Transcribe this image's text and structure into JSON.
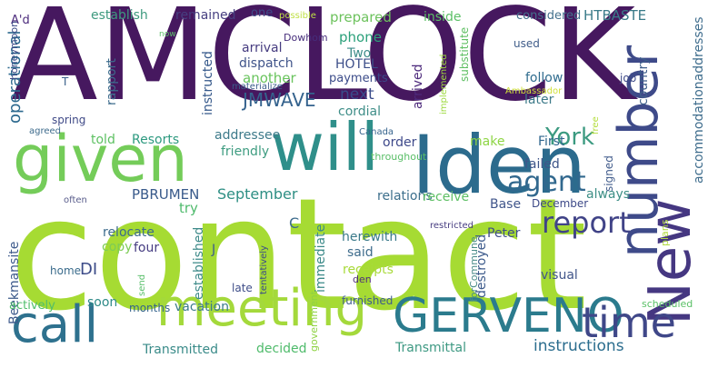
{
  "words": [
    {
      "text": "AMCLOCK",
      "color": "#46185f"
    },
    {
      "text": "contact",
      "color": "#a6db33"
    },
    {
      "text": "given",
      "color": "#74cc59"
    },
    {
      "text": "Iden",
      "color": "#2c6b8d"
    },
    {
      "text": "will",
      "color": "#2f8f8a"
    },
    {
      "text": "number",
      "color": "#3e4a89"
    },
    {
      "text": "New",
      "color": "#453781"
    },
    {
      "text": "meeting",
      "color": "#a4d93b"
    },
    {
      "text": "GERVENO",
      "color": "#2b7b8d"
    },
    {
      "text": "time",
      "color": "#3f4788"
    },
    {
      "text": "call",
      "color": "#2e718e"
    },
    {
      "text": "report",
      "color": "#404387"
    },
    {
      "text": "agent",
      "color": "#31688e"
    },
    {
      "text": "York",
      "color": "#3b9a80"
    },
    {
      "text": "instructions",
      "color": "#2b6d8e"
    },
    {
      "text": "JMWAVE",
      "color": "#34628d"
    },
    {
      "text": "next",
      "color": "#3a4b8a"
    },
    {
      "text": "HOTEL",
      "color": "#3c4e89"
    },
    {
      "text": "phone",
      "color": "#2ba07a"
    },
    {
      "text": "PBRUMEN",
      "color": "#395a8b"
    },
    {
      "text": "September",
      "color": "#2e8f84"
    },
    {
      "text": "operational",
      "color": "#2c698e"
    },
    {
      "text": "accommodationaddresses",
      "color": "#3f6d8d"
    },
    {
      "text": "establish",
      "color": "#3e9a7f"
    },
    {
      "text": "remained",
      "color": "#463f80"
    },
    {
      "text": "one",
      "color": "#3e4c88"
    },
    {
      "text": "prepared",
      "color": "#6dc25d"
    },
    {
      "text": "inside",
      "color": "#5bbf66"
    },
    {
      "text": "considered",
      "color": "#43718d"
    },
    {
      "text": "HTBASTE",
      "color": "#3a7b89"
    },
    {
      "text": "possible",
      "color": "#bfe045"
    },
    {
      "text": "A'd",
      "color": "#4c2b7c"
    },
    {
      "text": "now",
      "color": "#5ec06a"
    },
    {
      "text": "honeymoon",
      "color": "#3b4a86"
    },
    {
      "text": "T",
      "color": "#3c628b"
    },
    {
      "text": "spring",
      "color": "#414b88"
    },
    {
      "text": "agreed",
      "color": "#3e6b8c"
    },
    {
      "text": "rapport",
      "color": "#3e6d8d"
    },
    {
      "text": "arrival",
      "color": "#463c80"
    },
    {
      "text": "dispatch",
      "color": "#40548a"
    },
    {
      "text": "Dowhom",
      "color": "#462d7b"
    },
    {
      "text": "materialize",
      "color": "#3b5b8b"
    },
    {
      "text": "instructed",
      "color": "#36598b"
    },
    {
      "text": "another",
      "color": "#69c45d"
    },
    {
      "text": "cordial",
      "color": "#3f8e88"
    },
    {
      "text": "payments",
      "color": "#3b4b89"
    },
    {
      "text": "Two",
      "color": "#3e8c89"
    },
    {
      "text": "follow",
      "color": "#2f6c8e"
    },
    {
      "text": "later",
      "color": "#3d7a89"
    },
    {
      "text": "arrived",
      "color": "#4d2a7c"
    },
    {
      "text": "implemented",
      "color": "#9ed93f"
    },
    {
      "text": "substitute",
      "color": "#5fbf63"
    },
    {
      "text": "used",
      "color": "#405d8a"
    },
    {
      "text": "Ambassador",
      "color": "#d0e03a"
    },
    {
      "text": "job",
      "color": "#3e4a88"
    },
    {
      "text": "country",
      "color": "#3e5f8b"
    },
    {
      "text": "free",
      "color": "#b4dd3d"
    },
    {
      "text": "addressee",
      "color": "#3d7a8a"
    },
    {
      "text": "told",
      "color": "#5ec163"
    },
    {
      "text": "Resorts",
      "color": "#2e9a80"
    },
    {
      "text": "order",
      "color": "#3e498a"
    },
    {
      "text": "First",
      "color": "#2f668d"
    },
    {
      "text": "throughout",
      "color": "#59be67"
    },
    {
      "text": "Canada",
      "color": "#35638c"
    },
    {
      "text": "make",
      "color": "#8ed544"
    },
    {
      "text": "friendly",
      "color": "#3e9c80"
    },
    {
      "text": "failed",
      "color": "#3e5589"
    },
    {
      "text": "signed",
      "color": "#405b8b"
    },
    {
      "text": "always",
      "color": "#3e8f86"
    },
    {
      "text": "relations",
      "color": "#3c6f8c"
    },
    {
      "text": "receive",
      "color": "#5dbf64"
    },
    {
      "text": "Base",
      "color": "#41568b"
    },
    {
      "text": "December",
      "color": "#3e4a88"
    },
    {
      "text": "try",
      "color": "#4fba6c"
    },
    {
      "text": "C",
      "color": "#3e6c8d"
    },
    {
      "text": "often",
      "color": "#5a5d8c"
    },
    {
      "text": "DI",
      "color": "#3c4b88"
    },
    {
      "text": "herewith",
      "color": "#3b7a8a"
    },
    {
      "text": "restricted",
      "color": "#463c80"
    },
    {
      "text": "forCommune",
      "color": "#4a8c88"
    },
    {
      "text": "relocate",
      "color": "#3c6b8c"
    },
    {
      "text": "copy",
      "color": "#7dcc55"
    },
    {
      "text": "four",
      "color": "#453c81"
    },
    {
      "text": "J",
      "color": "#3e5b8b"
    },
    {
      "text": "said",
      "color": "#3e6c8c"
    },
    {
      "text": "Peter",
      "color": "#3f4e89"
    },
    {
      "text": "immediate",
      "color": "#3c8a89"
    },
    {
      "text": "receipts",
      "color": "#a9da3b"
    },
    {
      "text": "visual",
      "color": "#42568a"
    },
    {
      "text": "plans",
      "color": "#b1dc40"
    },
    {
      "text": "Beekmansite",
      "color": "#3d5a8b"
    },
    {
      "text": "home",
      "color": "#3b6c8c"
    },
    {
      "text": "send",
      "color": "#57be68"
    },
    {
      "text": "tentatively",
      "color": "#3d4d89"
    },
    {
      "text": "established",
      "color": "#3e8a89"
    },
    {
      "text": "late",
      "color": "#3e4d88"
    },
    {
      "text": "destroyed",
      "color": "#3c5a8b"
    },
    {
      "text": "den",
      "color": "#4f2f7d"
    },
    {
      "text": "soon",
      "color": "#2e8a88"
    },
    {
      "text": "months",
      "color": "#35638c"
    },
    {
      "text": "vacation",
      "color": "#3c7b8a"
    },
    {
      "text": "actively",
      "color": "#4fbd6a"
    },
    {
      "text": "government",
      "color": "#8fd244"
    },
    {
      "text": "furnished",
      "color": "#3e5c8b"
    },
    {
      "text": "scheduled",
      "color": "#5ac067"
    },
    {
      "text": "Transmitted",
      "color": "#3a8b89"
    },
    {
      "text": "decided",
      "color": "#4fbb6b"
    },
    {
      "text": "Transmittal",
      "color": "#3e9983"
    }
  ]
}
